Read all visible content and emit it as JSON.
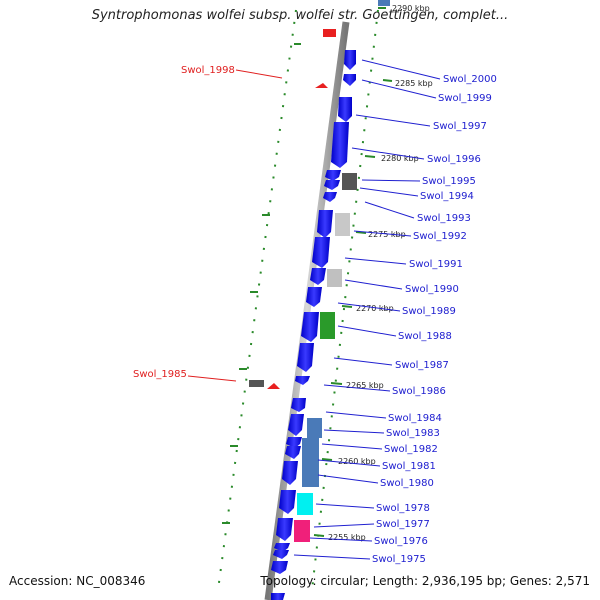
{
  "title": "Syntrophomonas wolfei subsp. wolfei str. Goettingen, complet...",
  "accession": "Accession: NC_008346",
  "stats": "Topology: circular; Length: 2,936,195 bp; Genes: 2,571",
  "kbp_marks": [
    "2290 kbp",
    "2285 kbp",
    "2280 kbp",
    "2275 kbp",
    "2270 kbp",
    "2265 kbp",
    "2260 kbp",
    "2255 kbp"
  ],
  "right_genes": [
    "Swol_2000",
    "Swol_1999",
    "Swol_1997",
    "Swol_1996",
    "Swol_1995",
    "Swol_1994",
    "Swol_1993",
    "Swol_1992",
    "Swol_1991",
    "Swol_1990",
    "Swol_1989",
    "Swol_1988",
    "Swol_1987",
    "Swol_1986",
    "Swol_1984",
    "Swol_1983",
    "Swol_1982",
    "Swol_1981",
    "Swol_1980",
    "Swol_1978",
    "Swol_1977",
    "Swol_1976",
    "Swol_1975"
  ],
  "left_genes": [
    "Swol_1998",
    "Swol_1985"
  ],
  "colors": {
    "label_blue": "#2020d0",
    "label_red": "#e02020",
    "cds_blue": "#1010e8",
    "backbone": "#9a9a9a",
    "dots": "#2a8a2a"
  }
}
